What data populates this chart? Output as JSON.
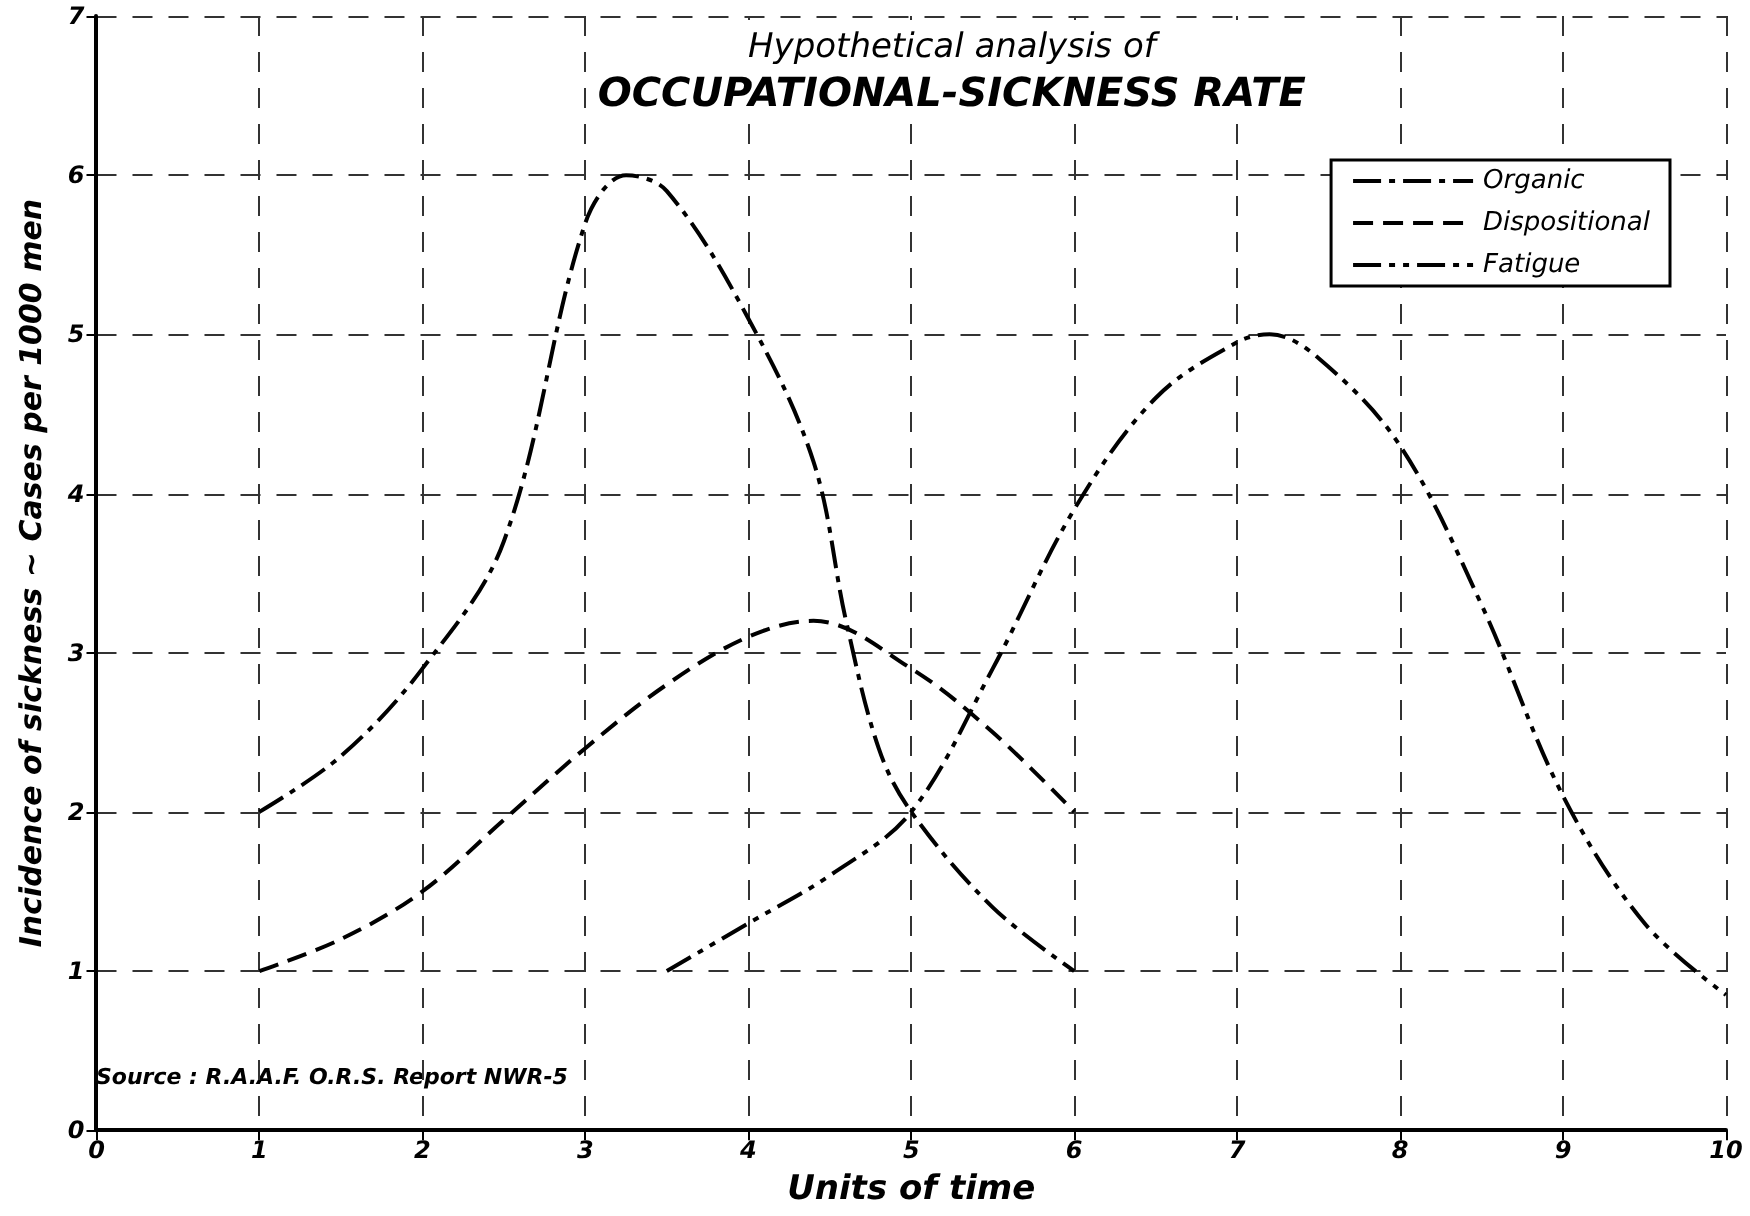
{
  "chart_data": {
    "type": "line",
    "title": "Hypothetical analysis of",
    "subtitle": "OCCUPATIONAL-SICKNESS RATE",
    "xlabel": "Units of time",
    "ylabel": "Incidence of sickness ~ Cases per 1000 men",
    "annotations": [
      "Source : R.A.A.F. O.R.S. Report NWR-5"
    ],
    "xlim": [
      0,
      10
    ],
    "xticks": [
      0,
      1,
      2,
      3,
      4,
      5,
      6,
      7,
      8,
      9,
      10
    ],
    "ylim": [
      0,
      7
    ],
    "yticks": [
      0,
      1,
      2,
      3,
      4,
      5,
      6,
      7
    ],
    "grid": true,
    "legend": "top right",
    "marker": "none",
    "series": [
      {
        "name": "Organic",
        "color": "#000000",
        "line_style": "dashdot",
        "x": [
          1,
          1.5,
          2,
          2.5,
          3,
          3.25,
          3.5,
          4,
          4.4,
          4.6,
          4.8,
          5,
          5.5,
          6
        ],
        "values": [
          2,
          2.35,
          2.9,
          3.7,
          5.7,
          6,
          5.9,
          5.1,
          4.2,
          3.2,
          2.4,
          2,
          1.4,
          1
        ]
      },
      {
        "name": "Dispositional",
        "color": "#000000",
        "line_style": "dashed",
        "x": [
          1,
          1.5,
          2,
          2.5,
          3,
          3.5,
          4,
          4.4,
          5,
          5.5,
          6
        ],
        "values": [
          1,
          1.2,
          1.5,
          1.95,
          2.4,
          2.8,
          3.1,
          3.2,
          2.9,
          2.5,
          2
        ]
      },
      {
        "name": "Fatigue",
        "color": "#000000",
        "line_style": "dashdotdot",
        "x": [
          3.5,
          4,
          4.5,
          5,
          5.5,
          6,
          6.5,
          7,
          7.2,
          7.5,
          8,
          8.5,
          9,
          9.5,
          10
        ],
        "values": [
          1,
          1.3,
          1.6,
          2,
          2.9,
          3.9,
          4.6,
          4.95,
          5,
          4.85,
          4.3,
          3.3,
          2.1,
          1.3,
          0.85
        ]
      }
    ]
  }
}
